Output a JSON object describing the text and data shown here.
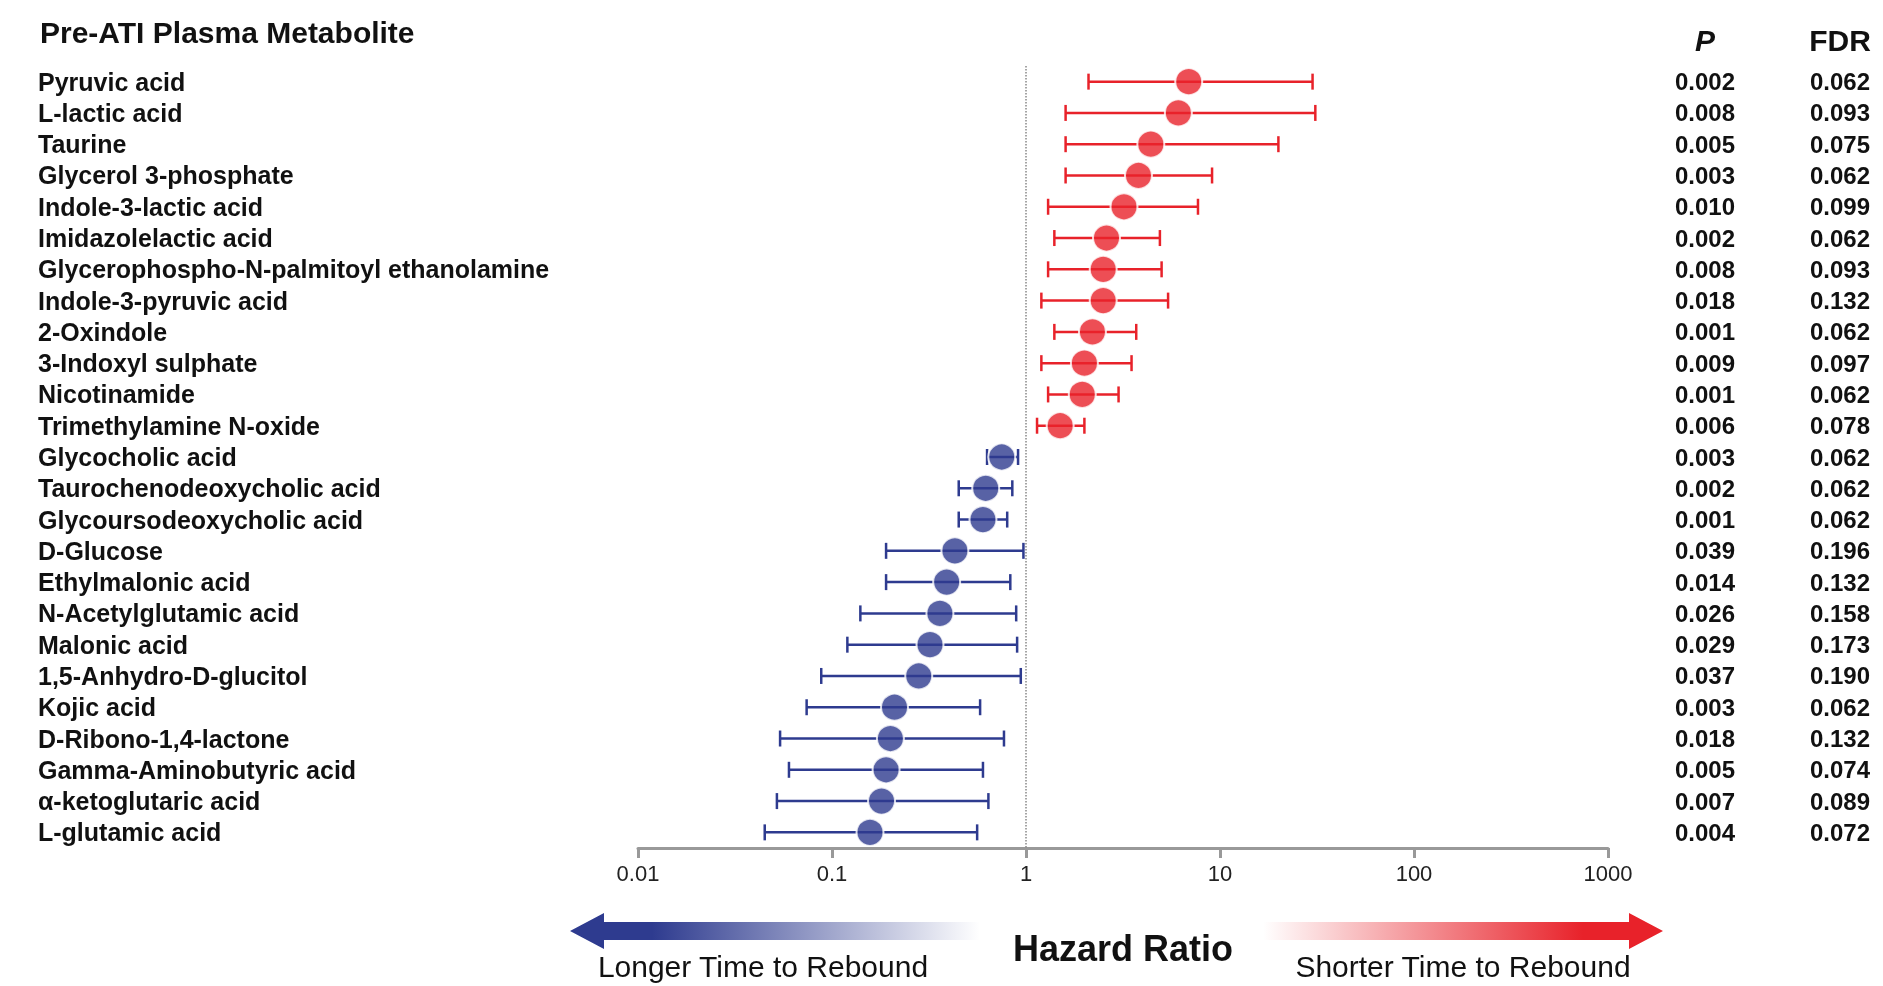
{
  "chart_data": {
    "type": "scatter",
    "title": "Pre-ATI Plasma Metabolite",
    "xlabel": "Hazard Ratio",
    "categories": [
      "Pyruvic acid",
      "L-lactic acid",
      "Taurine",
      "Glycerol 3-phosphate",
      "Indole-3-lactic acid",
      "Imidazolelactic acid",
      "Glycerophospho-N-palmitoyl ethanolamine",
      "Indole-3-pyruvic acid",
      "2-Oxindole",
      "3-Indoxyl sulphate",
      "Nicotinamide",
      "Trimethylamine N-oxide",
      "Glycocholic acid",
      "Taurochenodeoxycholic acid",
      "Glycoursodeoxycholic acid",
      "D-Glucose",
      "Ethylmalonic acid",
      "N-Acetylglutamic acid",
      "Malonic acid",
      "1,5-Anhydro-D-glucitol",
      "Kojic acid",
      "D-Ribono-1,4-lactone",
      "Gamma-Aminobutyric acid",
      "α-ketoglutaric acid",
      "L-glutamic acid"
    ],
    "values": [
      6.9,
      6.1,
      4.4,
      3.8,
      3.2,
      2.6,
      2.5,
      2.5,
      2.2,
      2.0,
      1.95,
      1.5,
      0.75,
      0.62,
      0.6,
      0.43,
      0.39,
      0.36,
      0.32,
      0.28,
      0.21,
      0.2,
      0.19,
      0.18,
      0.157
    ],
    "errors": [
      [
        2.1,
        30
      ],
      [
        1.6,
        31
      ],
      [
        1.6,
        20
      ],
      [
        1.6,
        9.1
      ],
      [
        1.3,
        7.7
      ],
      [
        1.4,
        4.9
      ],
      [
        1.3,
        5.0
      ],
      [
        1.2,
        5.4
      ],
      [
        1.4,
        3.7
      ],
      [
        1.2,
        3.5
      ],
      [
        1.3,
        3.0
      ],
      [
        1.14,
        2.0
      ],
      [
        0.63,
        0.91
      ],
      [
        0.45,
        0.85
      ],
      [
        0.45,
        0.8
      ],
      [
        0.19,
        0.97
      ],
      [
        0.19,
        0.83
      ],
      [
        0.14,
        0.89
      ],
      [
        0.12,
        0.9
      ],
      [
        0.088,
        0.94
      ],
      [
        0.074,
        0.58
      ],
      [
        0.054,
        0.77
      ],
      [
        0.06,
        0.6
      ],
      [
        0.052,
        0.64
      ],
      [
        0.045,
        0.56
      ]
    ],
    "colors": [
      "#e8222a",
      "#e8222a",
      "#e8222a",
      "#e8222a",
      "#e8222a",
      "#e8222a",
      "#e8222a",
      "#e8222a",
      "#e8222a",
      "#e8222a",
      "#e8222a",
      "#e8222a",
      "#2e3b8f",
      "#2e3b8f",
      "#2e3b8f",
      "#2e3b8f",
      "#2e3b8f",
      "#2e3b8f",
      "#2e3b8f",
      "#2e3b8f",
      "#2e3b8f",
      "#2e3b8f",
      "#2e3b8f",
      "#2e3b8f",
      "#2e3b8f"
    ],
    "xlim": [
      0.01,
      1000
    ],
    "xticks": [
      0.01,
      0.1,
      1,
      10,
      100,
      1000
    ],
    "log": "x",
    "grid": false,
    "orientation": "horizontal",
    "marker": "circle",
    "ref_lines": [
      {
        "axis": "x",
        "value": 1,
        "line_style": "dotted",
        "color": "#888888"
      }
    ],
    "annotations": [
      "P",
      "FDR",
      "Longer Time to Rebound",
      "Shorter Time to Rebound",
      "0.002",
      "0.062",
      "0.008",
      "0.093",
      "0.005",
      "0.075",
      "0.003",
      "0.062",
      "0.010",
      "0.099",
      "0.002",
      "0.062",
      "0.008",
      "0.093",
      "0.018",
      "0.132",
      "0.001",
      "0.062",
      "0.009",
      "0.097",
      "0.001",
      "0.062",
      "0.006",
      "0.078",
      "0.003",
      "0.062",
      "0.002",
      "0.062",
      "0.001",
      "0.062",
      "0.039",
      "0.196",
      "0.014",
      "0.132",
      "0.026",
      "0.158",
      "0.029",
      "0.173",
      "0.037",
      "0.190",
      "0.003",
      "0.062",
      "0.018",
      "0.132",
      "0.005",
      "0.074",
      "0.007",
      "0.089",
      "0.004",
      "0.072"
    ]
  }
}
